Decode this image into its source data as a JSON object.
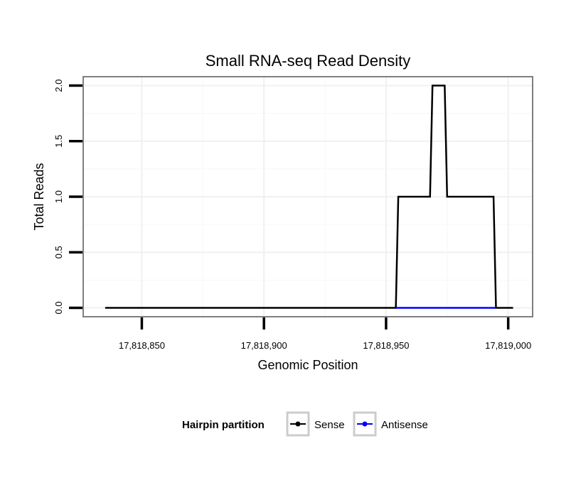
{
  "chart_data": {
    "type": "line",
    "title": "Small RNA-seq Read Density",
    "xlabel": "Genomic Position",
    "ylabel": "Total Reads",
    "xlim": [
      17818826,
      17819010
    ],
    "ylim": [
      -0.08,
      2.08
    ],
    "x_ticks": [
      17818850,
      17818900,
      17818950,
      17819000
    ],
    "x_tick_labels": [
      "17,818,850",
      "17,818,900",
      "17,818,950",
      "17,819,000"
    ],
    "y_ticks": [
      0,
      0.5,
      1,
      1.5,
      2
    ],
    "y_tick_labels": [
      "0.0",
      "0.5",
      "1.0",
      "1.5",
      "2.0"
    ],
    "grid": true,
    "legend_position": "bottom",
    "legend_title": "Hairpin partition",
    "series": [
      {
        "name": "Sense",
        "color": "#000000",
        "x": [
          17818835,
          17818954,
          17818955,
          17818968,
          17818969,
          17818974,
          17818975,
          17818994,
          17818995,
          17819002
        ],
        "y": [
          0,
          0,
          1,
          1,
          2,
          2,
          1,
          1,
          0,
          0
        ]
      },
      {
        "name": "Antisense",
        "color": "#0000ff",
        "x": [
          17818954,
          17818995
        ],
        "y": [
          0,
          0
        ]
      }
    ]
  }
}
